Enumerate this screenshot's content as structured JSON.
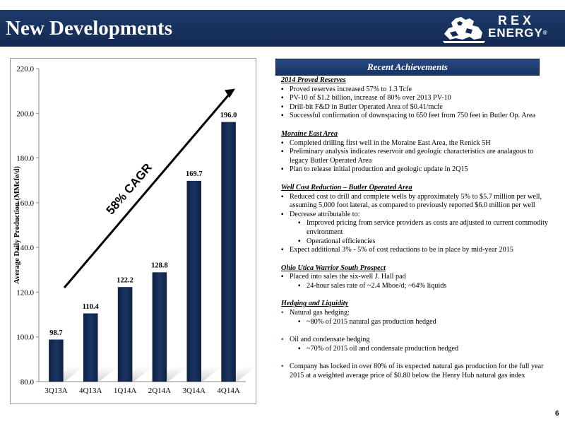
{
  "header": {
    "title": "New Developments",
    "logo_line1": "REX",
    "logo_line2": "ENERGY",
    "logo_reg": "®"
  },
  "chart_data": {
    "type": "bar",
    "categories": [
      "3Q13A",
      "4Q13A",
      "1Q14A",
      "2Q14A",
      "3Q14A",
      "4Q14A"
    ],
    "values": [
      98.7,
      110.4,
      122.2,
      128.8,
      169.7,
      196.0
    ],
    "value_labels": [
      "98.7",
      "110.4",
      "122.2",
      "128.8",
      "169.7",
      "196.0"
    ],
    "ylabel": "Average Daily Production (MMcfe/d)",
    "ylim": [
      80,
      220
    ],
    "yticks": [
      "80.0",
      "100.0",
      "120.0",
      "140.0",
      "160.0",
      "180.0",
      "200.0",
      "220.0"
    ],
    "annotation": "58% CAGR",
    "bar_color": "#1b3563",
    "grid": false
  },
  "recent": {
    "header": "Recent Achievements",
    "sections": [
      {
        "title": "2014 Proved Reserves",
        "items": [
          {
            "text": "Proved reserves increased 57% to 1.3 Tcfe"
          },
          {
            "text": "PV-10 of $1.2 billion, increase of 80% over 2013 PV-10"
          },
          {
            "text": "Drill-bit F&D in Butler Operated Area of $0.41/mcfe"
          },
          {
            "text": "Successful confirmation of downspacing to 650 feet from 750 feet in Butler Op. Area"
          }
        ]
      },
      {
        "title": "Moraine East Area",
        "items": [
          {
            "text": "Completed drilling first well in the Moraine East Area, the Renick 5H"
          },
          {
            "text": "Preliminary analysis indicates reservoir and geologic characteristics are analagous to legacy Butler Operated Area"
          },
          {
            "text": "Plan to release initial production and geologic update in 2Q15"
          }
        ]
      },
      {
        "title": "Well Cost Reduction – Butler Operated Area",
        "items": [
          {
            "text": "Reduced cost to drill and complete wells by approximately 5% to $5.7 million per well, assuming 5,000 foot lateral, as compared to previously reported $6.0 million per well"
          },
          {
            "text": "Decrease attributable to:",
            "sub": [
              "Improved pricing from service providers as costs are adjusted to current commodity environment",
              "Operational efficiencies"
            ]
          },
          {
            "text": "Expect additional 3% - 5% of cost reductions to be in place by mid-year 2015"
          }
        ]
      },
      {
        "title": "Ohio Utica Warrior South Prospect",
        "items": [
          {
            "text": "Placed into sales the six-well J. Hall pad",
            "sub": [
              "24-hour sales rate of ~2.4 Mboe/d; ~64% liquids"
            ]
          }
        ]
      },
      {
        "title": "Hedging and Liquidity",
        "items": [
          {
            "text": "Natural gas hedging:",
            "sub": [
              "~80% of 2015 natural gas production hedged"
            ]
          }
        ]
      }
    ],
    "extra_items": [
      {
        "text": "Oil and condensate hedging",
        "sub": [
          "~70% of 2015 oil and condensate production hedged"
        ]
      },
      {
        "text": "Company has locked in over 80% of its expected natural gas production for the full year 2015 at a weighted average price of $0.80 below the Henry Hub natural gas index"
      }
    ]
  },
  "page_number": "6"
}
